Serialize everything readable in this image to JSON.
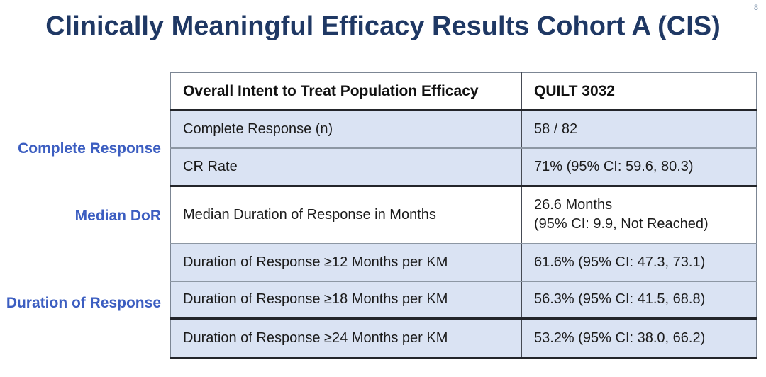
{
  "title": "Clinically Meaningful Efficacy Results Cohort A (CIS)",
  "page_number": "8",
  "side_labels": [
    "Complete Response",
    "Median DoR",
    "Duration of Response"
  ],
  "table": {
    "header": {
      "col1": "Overall Intent to Treat Population Efficacy",
      "col2": "QUILT 3032"
    },
    "rows": [
      {
        "label": "Complete Response (n)",
        "value": "58 / 82"
      },
      {
        "label": "CR Rate",
        "value": "71% (95% CI: 59.6, 80.3)"
      },
      {
        "label": "Median Duration of Response in Months",
        "value": "26.6 Months\n(95% CI: 9.9, Not Reached)"
      },
      {
        "label": "Duration of Response ≥12 Months per KM",
        "value": "61.6% (95% CI: 47.3, 73.1)"
      },
      {
        "label": "Duration of Response ≥18 Months per KM",
        "value": "56.3% (95% CI: 41.5, 68.8)"
      },
      {
        "label": "Duration of Response ≥24 Months per KM",
        "value": "53.2% (95% CI: 38.0, 66.2)"
      }
    ]
  },
  "colors": {
    "title_text": "#1F3864",
    "side_label_text": "#3C5EC1",
    "row_shade": "#DAE3F3",
    "body_text": "#1B1B1B",
    "dark_border": "#23252A"
  }
}
